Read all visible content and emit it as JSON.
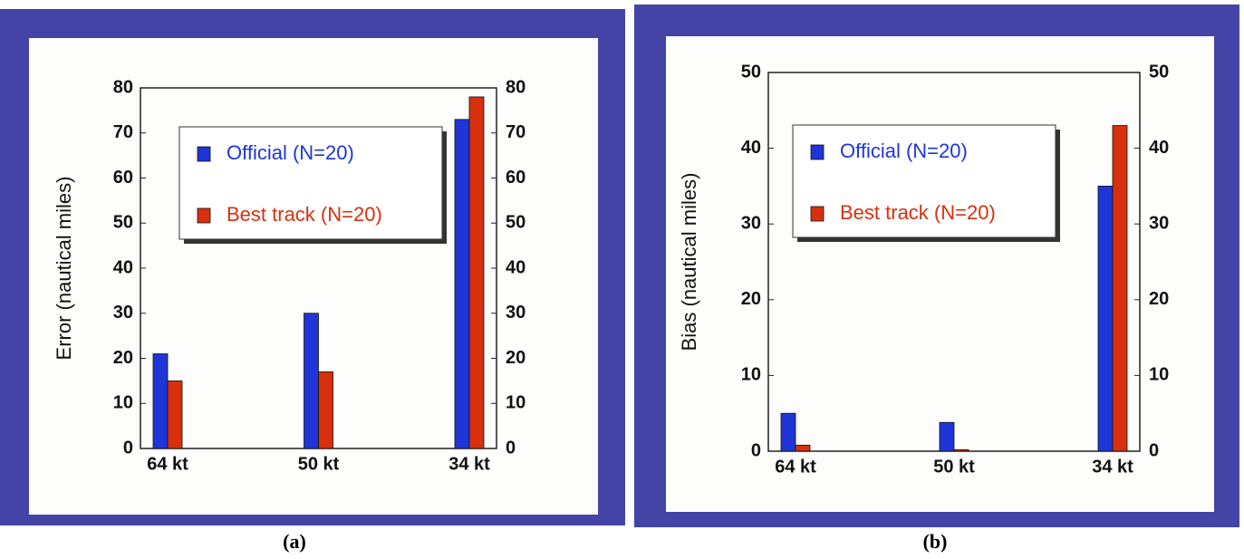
{
  "chart_data": [
    {
      "type": "bar",
      "caption": "(a)",
      "ylabel": "Error (nautical miles)",
      "categories": [
        "64 kt",
        "50 kt",
        "34 kt"
      ],
      "series": [
        {
          "name": "Official (N=20)",
          "color": "#1f35d8",
          "values": [
            21,
            30,
            73
          ]
        },
        {
          "name": "Best track (N=20)",
          "color": "#d8300f",
          "values": [
            15,
            17,
            78
          ]
        }
      ],
      "ylim": [
        0,
        80
      ],
      "yticks": [
        0,
        10,
        20,
        30,
        40,
        50,
        60,
        70,
        80
      ]
    },
    {
      "type": "bar",
      "caption": "(b)",
      "ylabel": "Bias (nautical miles)",
      "categories": [
        "64 kt",
        "50 kt",
        "34 kt"
      ],
      "series": [
        {
          "name": "Official (N=20)",
          "color": "#1f35d8",
          "values": [
            5,
            3.8,
            35
          ]
        },
        {
          "name": "Best track (N=20)",
          "color": "#d8300f",
          "values": [
            0.8,
            0.2,
            43
          ]
        }
      ],
      "ylim": [
        0,
        50
      ],
      "yticks": [
        0,
        10,
        20,
        30,
        40,
        50
      ]
    }
  ]
}
